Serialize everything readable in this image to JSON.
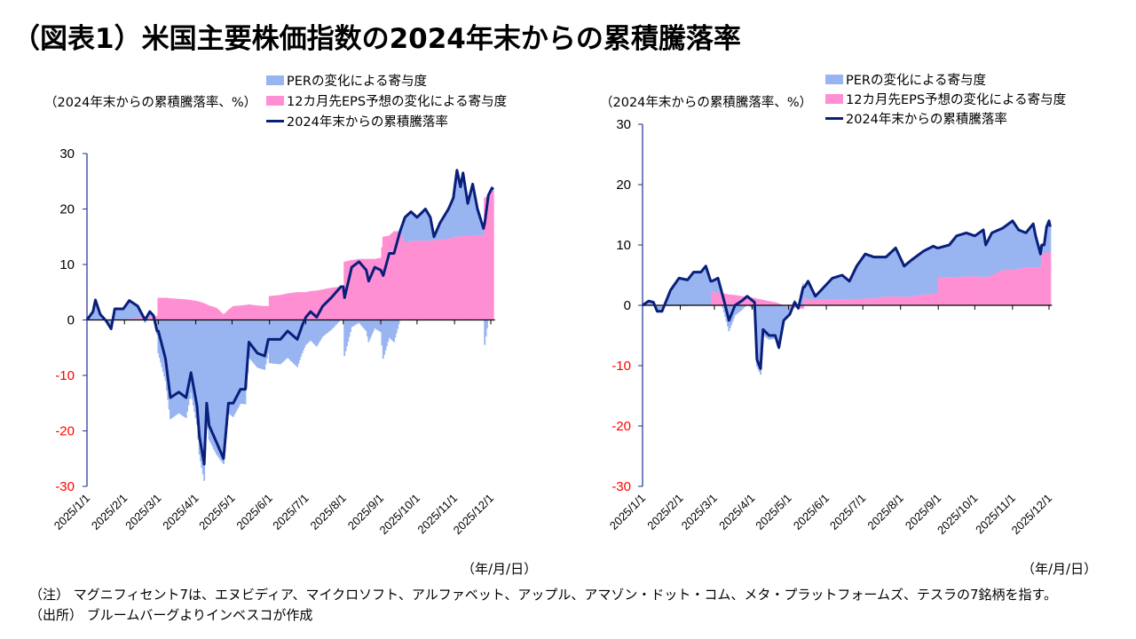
{
  "title": "（図表1）米国主要株価指数の2024年末からの累積騰落率",
  "colors": {
    "per": "#99b5f1",
    "eps": "#ff8fd3",
    "line": "#0a1f7a",
    "negative_tick": "#ff0000",
    "axis": "#1a2f8f"
  },
  "legend": {
    "per": "PERの変化による寄与度",
    "eps": "12カ月先EPS予想の変化による寄与度",
    "total": "2024年末からの累積騰落率"
  },
  "footnotes": {
    "note": "（注） マグニフィセント7は、エヌビディア、マイクロソフト、アルファベット、アップル、アマゾン・ドット・コム、メタ・プラットフォームズ、テスラの7銘柄を指す。",
    "source": "（出所） ブルームバーグよりインベスコが作成"
  },
  "chart_data": [
    {
      "type": "area",
      "ylabel": "（2024年末からの累積騰落率、%）",
      "xlabel": "（年/月/日）",
      "ylim": [
        -30,
        30
      ],
      "yticks": [
        "30",
        "20",
        "10",
        "0",
        "-10",
        "-20",
        "-30"
      ],
      "xticks": [
        "2025/1/1",
        "2025/2/1",
        "2025/3/1",
        "2025/4/1",
        "2025/5/1",
        "2025/6/1",
        "2025/7/1",
        "2025/8/1",
        "2025/9/1",
        "2025/10/1",
        "2025/11/1",
        "2025/12/1"
      ],
      "legend_placement": "top-right",
      "columns": [
        "date",
        "2024年末からの累積騰落率",
        "12カ月先EPS予想の変化による寄与度"
      ],
      "points": [
        [
          "2025-01-01",
          0,
          0
        ],
        [
          "2025-01-06",
          1.5,
          0
        ],
        [
          "2025-01-08",
          3.6,
          0
        ],
        [
          "2025-01-12",
          1,
          0
        ],
        [
          "2025-01-17",
          -0.2,
          0
        ],
        [
          "2025-01-21",
          -1.6,
          0
        ],
        [
          "2025-01-24",
          2,
          0
        ],
        [
          "2025-01-31",
          2,
          0
        ],
        [
          "2025-02-05",
          3.5,
          0.2
        ],
        [
          "2025-02-12",
          2.5,
          0.3
        ],
        [
          "2025-02-18",
          0,
          0.5
        ],
        [
          "2025-02-22",
          1.5,
          0.6
        ],
        [
          "2025-02-25",
          0.8,
          0.6
        ],
        [
          "2025-02-28",
          -2,
          0.7
        ],
        [
          "2025-03-01",
          -2,
          4
        ],
        [
          "2025-03-07",
          -7,
          4
        ],
        [
          "2025-03-11",
          -14,
          3.9
        ],
        [
          "2025-03-18",
          -13,
          3.8
        ],
        [
          "2025-03-24",
          -14,
          3.7
        ],
        [
          "2025-03-28",
          -9.5,
          3.6
        ],
        [
          "2025-04-02",
          -15.5,
          3.4
        ],
        [
          "2025-04-04",
          -21,
          3.3
        ],
        [
          "2025-04-08",
          -26,
          3.0
        ],
        [
          "2025-04-10",
          -15,
          2.8
        ],
        [
          "2025-04-12",
          -19,
          2.6
        ],
        [
          "2025-04-18",
          -22,
          2.2
        ],
        [
          "2025-04-24",
          -25,
          1
        ],
        [
          "2025-04-28",
          -15,
          1.8
        ],
        [
          "2025-05-02",
          -15,
          2.5
        ],
        [
          "2025-05-08",
          -12.5,
          2.6
        ],
        [
          "2025-05-12",
          -12.5,
          2.7
        ],
        [
          "2025-05-15",
          -4,
          2.8
        ],
        [
          "2025-05-22",
          -6,
          2.6
        ],
        [
          "2025-05-28",
          -6.5,
          2.5
        ],
        [
          "2025-05-31",
          -3.5,
          2.5
        ],
        [
          "2025-06-01",
          -3.5,
          4.3
        ],
        [
          "2025-06-10",
          -3.5,
          4.5
        ],
        [
          "2025-06-16",
          -2,
          4.8
        ],
        [
          "2025-06-24",
          -3.5,
          5
        ],
        [
          "2025-06-28",
          -1,
          5
        ],
        [
          "2025-07-01",
          0.5,
          5
        ],
        [
          "2025-07-05",
          1.5,
          5.2
        ],
        [
          "2025-07-10",
          0.5,
          5.3
        ],
        [
          "2025-07-15",
          2.5,
          5.5
        ],
        [
          "2025-07-22",
          4,
          5.8
        ],
        [
          "2025-07-30",
          6,
          6
        ],
        [
          "2025-08-01",
          6,
          6
        ],
        [
          "2025-08-02",
          4,
          10.5
        ],
        [
          "2025-08-08",
          9.5,
          10.8
        ],
        [
          "2025-08-14",
          10.5,
          11
        ],
        [
          "2025-08-20",
          9,
          11
        ],
        [
          "2025-08-22",
          7,
          11
        ],
        [
          "2025-08-27",
          9.5,
          11
        ],
        [
          "2025-09-01",
          9,
          11.2
        ],
        [
          "2025-09-03",
          8,
          15
        ],
        [
          "2025-09-08",
          12,
          15.2
        ],
        [
          "2025-09-12",
          12,
          16
        ],
        [
          "2025-09-17",
          16,
          16
        ],
        [
          "2025-09-21",
          18.5,
          14
        ],
        [
          "2025-09-26",
          19.5,
          14.2
        ],
        [
          "2025-10-01",
          18.5,
          14.3
        ],
        [
          "2025-10-08",
          20,
          14.3
        ],
        [
          "2025-10-12",
          18.5,
          14.3
        ],
        [
          "2025-10-15",
          15,
          14.4
        ],
        [
          "2025-10-20",
          17.5,
          14.5
        ],
        [
          "2025-10-27",
          20,
          14.6
        ],
        [
          "2025-10-31",
          22,
          15
        ],
        [
          "2025-11-03",
          27,
          15
        ],
        [
          "2025-11-06",
          24,
          15.1
        ],
        [
          "2025-11-08",
          26.5,
          15.2
        ],
        [
          "2025-11-12",
          21,
          15.2
        ],
        [
          "2025-11-16",
          24.5,
          15.2
        ],
        [
          "2025-11-20",
          20,
          15.3
        ],
        [
          "2025-11-25",
          16.5,
          15.3
        ],
        [
          "2025-11-26",
          17.5,
          22
        ],
        [
          "2025-11-29",
          22.5,
          22.5
        ],
        [
          "2025-12-02",
          23.8,
          23
        ],
        [
          "2025-12-03",
          23.5,
          23.2
        ]
      ]
    },
    {
      "type": "area",
      "ylabel": "（2024年末からの累積騰落率、%）",
      "xlabel": "（年/月/日）",
      "ylim": [
        -30,
        30
      ],
      "yticks": [
        "30",
        "20",
        "10",
        "0",
        "-10",
        "-20",
        "-30"
      ],
      "xticks": [
        "2025/1/1",
        "2025/2/1",
        "2025/3/1",
        "2025/4/1",
        "2025/5/1",
        "2025/6/1",
        "2025/7/1",
        "2025/8/1",
        "2025/9/1",
        "2025/10/1",
        "2025/11/1",
        "2025/12/1"
      ],
      "legend_placement": "top-right",
      "columns": [
        "date",
        "2024年末からの累積騰落率",
        "12カ月先EPS予想の変化による寄与度"
      ],
      "points": [
        [
          "2025-01-01",
          0,
          0
        ],
        [
          "2025-01-06",
          0.7,
          0
        ],
        [
          "2025-01-10",
          0.5,
          0
        ],
        [
          "2025-01-13",
          -1,
          -0.1
        ],
        [
          "2025-01-17",
          -1,
          -0.1
        ],
        [
          "2025-01-24",
          2.5,
          -0.1
        ],
        [
          "2025-01-31",
          4.5,
          -0.1
        ],
        [
          "2025-02-07",
          4.2,
          -0.1
        ],
        [
          "2025-02-12",
          5.5,
          0
        ],
        [
          "2025-02-18",
          5.5,
          0
        ],
        [
          "2025-02-22",
          6.5,
          0
        ],
        [
          "2025-02-26",
          4,
          0
        ],
        [
          "2025-02-27",
          4,
          2.3
        ],
        [
          "2025-03-04",
          4.5,
          2.1
        ],
        [
          "2025-03-10",
          0,
          1.9
        ],
        [
          "2025-03-13",
          -2.5,
          1.8
        ],
        [
          "2025-03-18",
          0,
          1.7
        ],
        [
          "2025-03-24",
          0.8,
          1.5
        ],
        [
          "2025-03-28",
          1.5,
          1.4
        ],
        [
          "2025-04-03",
          0.5,
          1.2
        ],
        [
          "2025-04-05",
          -9,
          1.1
        ],
        [
          "2025-04-08",
          -10.5,
          1
        ],
        [
          "2025-04-10",
          -4,
          0.9
        ],
        [
          "2025-04-15",
          -5,
          0.7
        ],
        [
          "2025-04-20",
          -5,
          0.5
        ],
        [
          "2025-04-23",
          -7,
          0.3
        ],
        [
          "2025-04-27",
          -2.5,
          0
        ],
        [
          "2025-05-02",
          -1.5,
          -0.3
        ],
        [
          "2025-05-06",
          0.5,
          -0.4
        ],
        [
          "2025-05-09",
          -0.5,
          -0.5
        ],
        [
          "2025-05-13",
          3,
          -0.6
        ],
        [
          "2025-05-14",
          3,
          1.2
        ],
        [
          "2025-05-17",
          4,
          1
        ],
        [
          "2025-05-23",
          1.5,
          0.9
        ],
        [
          "2025-05-30",
          3,
          0.9
        ],
        [
          "2025-06-06",
          4.5,
          1
        ],
        [
          "2025-06-14",
          5,
          1
        ],
        [
          "2025-06-20",
          4,
          1
        ],
        [
          "2025-06-26",
          6.5,
          1.1
        ],
        [
          "2025-07-03",
          8.5,
          1.1
        ],
        [
          "2025-07-10",
          8,
          1.2
        ],
        [
          "2025-07-20",
          8,
          1.4
        ],
        [
          "2025-07-28",
          9.5,
          1.5
        ],
        [
          "2025-08-04",
          6.5,
          1.4
        ],
        [
          "2025-08-10",
          7.5,
          1.5
        ],
        [
          "2025-08-20",
          9,
          1.8
        ],
        [
          "2025-08-28",
          9.8,
          1.9
        ],
        [
          "2025-08-31",
          9.5,
          1.9
        ],
        [
          "2025-09-01",
          9.5,
          4.6
        ],
        [
          "2025-09-10",
          10,
          4.7
        ],
        [
          "2025-09-16",
          11.5,
          4.6
        ],
        [
          "2025-09-24",
          12,
          4.8
        ],
        [
          "2025-10-01",
          11.5,
          4.8
        ],
        [
          "2025-10-08",
          12.5,
          4.7
        ],
        [
          "2025-10-10",
          10,
          4.6
        ],
        [
          "2025-10-15",
          12,
          5
        ],
        [
          "2025-10-24",
          12.8,
          5.8
        ],
        [
          "2025-11-01",
          14,
          5.9
        ],
        [
          "2025-11-06",
          12.5,
          6
        ],
        [
          "2025-11-12",
          12,
          6.3
        ],
        [
          "2025-11-18",
          13.5,
          6.3
        ],
        [
          "2025-11-20",
          11.5,
          6.3
        ],
        [
          "2025-11-24",
          8.5,
          6.3
        ],
        [
          "2025-11-25",
          10,
          8.5
        ],
        [
          "2025-11-27",
          10,
          8.6
        ],
        [
          "2025-11-29",
          13,
          8.7
        ],
        [
          "2025-12-01",
          14,
          8.8
        ],
        [
          "2025-12-02",
          13,
          8.8
        ]
      ]
    }
  ]
}
